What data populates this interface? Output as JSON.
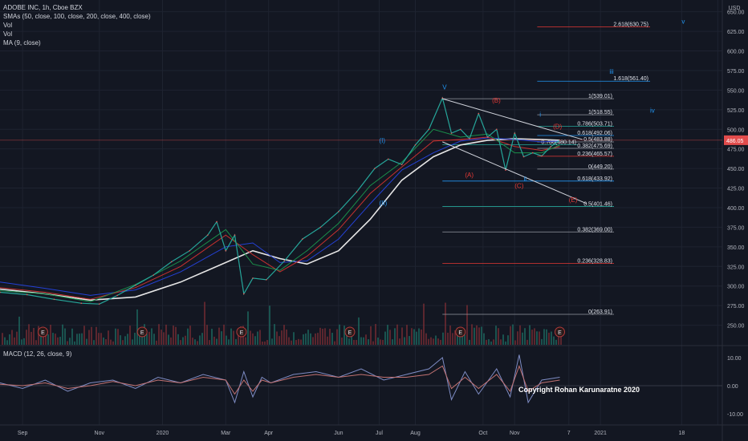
{
  "legend": {
    "title": "ADOBE INC, 1h, Cboe BZX",
    "indicators": [
      "SMAs (50, close, 100, close, 200, close, 400, close)",
      "Vol",
      "Vol",
      "MA (9, close)"
    ]
  },
  "macd_label": "MACD (12, 26, close, 9)",
  "copyright": "Copyright Rohan Karunaratne 2020",
  "colors": {
    "background": "#131722",
    "grid": "#1e2330",
    "axis_text": "#b2b5be",
    "price_line": "#e24c4c",
    "sma_white": "#e6e6e6",
    "sma_blue": "#2441d6",
    "sma_red": "#c8312f",
    "sma_green": "#1a8f4a",
    "fib_blue": "#2196f3",
    "fib_red": "#e53935",
    "fib_teal": "#26a69a",
    "fib_gray": "#9598a1",
    "macd_line": "#7e8cc4",
    "signal_line": "#c27272"
  },
  "chart_data": [
    {
      "type": "line",
      "title": "ADOBE INC, 1h, Cboe BZX",
      "ylabel": "USD",
      "ylim": [
        225,
        665
      ],
      "y_ticks": [
        250,
        275,
        300,
        325,
        350,
        375,
        400,
        425,
        450,
        475,
        500,
        525,
        550,
        575,
        600,
        625,
        650
      ],
      "y_tick_labels": [
        "250.00",
        "275.00",
        "300.00",
        "325.00",
        "350.00",
        "375.00",
        "400.00",
        "425.00",
        "450.00",
        "475.00",
        "500.00",
        "525.00",
        "550.00",
        "575.00",
        "600.00",
        "625.00",
        "650.00"
      ],
      "xlim": [
        0,
        16
      ],
      "x_ticks": [
        0.5,
        2.2,
        3.6,
        5.0,
        5.95,
        7.5,
        8.4,
        9.2,
        10.7,
        11.4,
        12.6,
        13.3,
        15.1,
        15.9
      ],
      "x_tick_labels": [
        "Sep",
        "Nov",
        "2020",
        "Mar",
        "Apr",
        "Jun",
        "Jul",
        "Aug",
        "Oct",
        "Nov",
        "7",
        "2021",
        "18",
        ""
      ],
      "last_price": 486.05,
      "last_price_label": "486.05",
      "price_series": {
        "name": "Price",
        "x": [
          0,
          0.6,
          1.2,
          1.8,
          2.2,
          2.6,
          3.0,
          3.4,
          3.8,
          4.2,
          4.6,
          4.8,
          5.0,
          5.2,
          5.4,
          5.6,
          5.9,
          6.3,
          6.7,
          7.1,
          7.5,
          7.9,
          8.3,
          8.6,
          8.9,
          9.2,
          9.5,
          9.8,
          10.0,
          10.2,
          10.4,
          10.6,
          10.8,
          11.0,
          11.2,
          11.4,
          11.6,
          11.8,
          12.0,
          12.2,
          12.4
        ],
        "y": [
          292,
          289,
          283,
          278,
          277,
          288,
          301,
          314,
          331,
          345,
          365,
          382,
          345,
          365,
          290,
          310,
          308,
          332,
          360,
          375,
          395,
          420,
          450,
          462,
          455,
          480,
          500,
          540,
          495,
          500,
          488,
          520,
          490,
          500,
          448,
          495,
          465,
          470,
          466,
          478,
          486
        ]
      },
      "sma_series": [
        {
          "name": "SMA 400",
          "color_key": "sma_white",
          "x": [
            0,
            1.0,
            2.0,
            3.0,
            4.0,
            5.0,
            5.6,
            6.2,
            6.8,
            7.5,
            8.2,
            8.9,
            9.6,
            10.2,
            10.8,
            11.4,
            12.0,
            12.4
          ],
          "y": [
            296,
            290,
            282,
            286,
            305,
            330,
            345,
            335,
            328,
            345,
            385,
            435,
            465,
            480,
            486,
            488,
            487,
            486
          ]
        },
        {
          "name": "SMA 200",
          "color_key": "sma_blue",
          "x": [
            0,
            1.0,
            2.0,
            3.0,
            4.0,
            5.0,
            5.6,
            6.2,
            6.8,
            7.5,
            8.2,
            8.9,
            9.6,
            10.2,
            10.8,
            11.4,
            12.0,
            12.4
          ],
          "y": [
            305,
            297,
            288,
            295,
            318,
            350,
            355,
            330,
            332,
            360,
            405,
            448,
            470,
            485,
            489,
            487,
            484,
            485
          ]
        },
        {
          "name": "SMA 100",
          "color_key": "sma_red",
          "x": [
            0,
            1.0,
            2.0,
            3.0,
            4.0,
            5.0,
            5.6,
            6.2,
            6.8,
            7.5,
            8.2,
            8.9,
            9.6,
            10.2,
            10.8,
            11.4,
            12.0,
            12.4
          ],
          "y": [
            298,
            292,
            283,
            298,
            325,
            365,
            340,
            318,
            338,
            372,
            418,
            452,
            485,
            487,
            490,
            478,
            473,
            478
          ]
        },
        {
          "name": "SMA 50",
          "color_key": "sma_green",
          "x": [
            0,
            1.0,
            2.0,
            3.0,
            4.0,
            5.0,
            5.6,
            6.2,
            6.8,
            7.5,
            8.2,
            8.9,
            9.6,
            10.2,
            10.8,
            11.4,
            12.0,
            12.4
          ],
          "y": [
            294,
            290,
            280,
            302,
            332,
            372,
            328,
            320,
            345,
            380,
            428,
            458,
            500,
            490,
            494,
            470,
            470,
            480
          ]
        }
      ],
      "fib_levels": [
        {
          "label": "2.618(630.75)",
          "value": 630.75,
          "x_start": 11.9,
          "x_end": 14.4,
          "color_key": "fib_red"
        },
        {
          "label": "1.618(561.40)",
          "value": 561.4,
          "x_start": 11.9,
          "x_end": 14.4,
          "color_key": "fib_blue"
        },
        {
          "label": "1(539.01)",
          "value": 539.01,
          "x_start": 9.8,
          "x_end": 13.6,
          "color_key": "fib_gray"
        },
        {
          "label": "1(518.55)",
          "value": 518.55,
          "x_start": 11.9,
          "x_end": 13.6,
          "color_key": "fib_gray"
        },
        {
          "label": "0.786(503.71)",
          "value": 503.71,
          "x_start": 11.9,
          "x_end": 13.6,
          "color_key": "fib_teal"
        },
        {
          "label": "0.618(492.06)",
          "value": 492.06,
          "x_start": 11.9,
          "x_end": 13.6,
          "color_key": "fib_blue"
        },
        {
          "label": "0.5(483.88)",
          "value": 483.88,
          "x_start": 11.9,
          "x_end": 13.6,
          "color_key": "fib_gray"
        },
        {
          "label": "0.786(480.14)",
          "value": 480.14,
          "x_start": 9.8,
          "x_end": 12.8,
          "color_key": "fib_teal"
        },
        {
          "label": "0.382(475.69)",
          "value": 475.69,
          "x_start": 11.9,
          "x_end": 13.6,
          "color_key": "fib_gray"
        },
        {
          "label": "0.236(465.57)",
          "value": 465.57,
          "x_start": 11.9,
          "x_end": 13.6,
          "color_key": "fib_red"
        },
        {
          "label": "0(449.20)",
          "value": 449.2,
          "x_start": 11.9,
          "x_end": 13.6,
          "color_key": "fib_gray"
        },
        {
          "label": "0.618(433.92)",
          "value": 433.92,
          "x_start": 9.8,
          "x_end": 13.6,
          "color_key": "fib_blue"
        },
        {
          "label": "0.5(401.46)",
          "value": 401.46,
          "x_start": 9.8,
          "x_end": 13.6,
          "color_key": "fib_teal"
        },
        {
          "label": "0.382(369.00)",
          "value": 369.0,
          "x_start": 9.8,
          "x_end": 13.6,
          "color_key": "fib_gray"
        },
        {
          "label": "0.236(328.83)",
          "value": 328.83,
          "x_start": 9.8,
          "x_end": 13.6,
          "color_key": "fib_red"
        },
        {
          "label": "0(263.91)",
          "value": 263.91,
          "x_start": 9.8,
          "x_end": 13.6,
          "color_key": "fib_gray"
        }
      ],
      "trend_lines": [
        {
          "x1": 9.8,
          "y1": 539,
          "x2": 12.9,
          "y2": 487
        },
        {
          "x1": 9.8,
          "y1": 484,
          "x2": 13.0,
          "y2": 405
        }
      ],
      "wave_labels": [
        {
          "text": "(I)",
          "x": 8.4,
          "y": 483,
          "color_key": "fib_blue"
        },
        {
          "text": "(II)",
          "x": 8.4,
          "y": 403,
          "color_key": "fib_blue"
        },
        {
          "text": "V",
          "x": 9.8,
          "y": 551,
          "color_key": "fib_blue"
        },
        {
          "text": "(B)",
          "x": 10.9,
          "y": 534,
          "color_key": "fib_red"
        },
        {
          "text": "(A)",
          "x": 10.3,
          "y": 439,
          "color_key": "fib_red"
        },
        {
          "text": "(C)",
          "x": 11.4,
          "y": 425,
          "color_key": "fib_red"
        },
        {
          "text": "i",
          "x": 11.95,
          "y": 516,
          "color_key": "fib_blue"
        },
        {
          "text": "ii",
          "x": 11.6,
          "y": 434,
          "color_key": "fib_blue"
        },
        {
          "text": "iii",
          "x": 13.5,
          "y": 571,
          "color_key": "fib_blue"
        },
        {
          "text": "iv",
          "x": 14.4,
          "y": 521,
          "color_key": "fib_blue"
        },
        {
          "text": "v",
          "x": 15.1,
          "y": 635,
          "color_key": "fib_blue"
        },
        {
          "text": "(D)",
          "x": 12.25,
          "y": 501,
          "color_key": "fib_red"
        },
        {
          "text": "(E)",
          "x": 12.6,
          "y": 407,
          "color_key": "fib_red"
        }
      ],
      "earnings_markers": {
        "label": "E",
        "x": [
          0.95,
          3.15,
          5.35,
          7.75,
          10.2,
          12.4
        ]
      }
    },
    {
      "type": "line",
      "title": "MACD (12, 26, close, 9)",
      "ylim": [
        -14,
        14
      ],
      "y_ticks": [
        -10,
        0,
        10
      ],
      "y_tick_labels": [
        "-10.00",
        "0.00",
        "10.00"
      ],
      "series": [
        {
          "name": "MACD",
          "color_key": "macd_line",
          "x": [
            0,
            0.5,
            1.0,
            1.5,
            2.0,
            2.5,
            3.0,
            3.5,
            4.0,
            4.5,
            5.0,
            5.2,
            5.4,
            5.6,
            5.8,
            6.0,
            6.5,
            7.0,
            7.5,
            8.0,
            8.5,
            9.0,
            9.5,
            9.8,
            10.0,
            10.3,
            10.6,
            11.0,
            11.3,
            11.5,
            11.7,
            12.0,
            12.4
          ],
          "y": [
            1,
            -1,
            2,
            -2,
            1,
            2,
            -1,
            3,
            1,
            4,
            2,
            -6,
            5,
            -4,
            3,
            1,
            4,
            5,
            3,
            6,
            2,
            4,
            6,
            10,
            -5,
            5,
            -3,
            6,
            -4,
            11,
            -6,
            2,
            3
          ]
        },
        {
          "name": "Signal",
          "color_key": "signal_line",
          "x": [
            0,
            0.5,
            1.0,
            1.5,
            2.0,
            2.5,
            3.0,
            3.5,
            4.0,
            4.5,
            5.0,
            5.2,
            5.4,
            5.6,
            5.8,
            6.0,
            6.5,
            7.0,
            7.5,
            8.0,
            8.5,
            9.0,
            9.5,
            9.8,
            10.0,
            10.3,
            10.6,
            11.0,
            11.3,
            11.5,
            11.7,
            12.0,
            12.4
          ],
          "y": [
            0.5,
            0,
            1,
            -1,
            0,
            1.5,
            0,
            2,
            1,
            3,
            2,
            -3,
            2,
            -2,
            2,
            1,
            3,
            4,
            3,
            4,
            3,
            3,
            4,
            7,
            -1,
            3,
            -1,
            4,
            -2,
            7,
            -2,
            1,
            2
          ]
        }
      ]
    }
  ]
}
